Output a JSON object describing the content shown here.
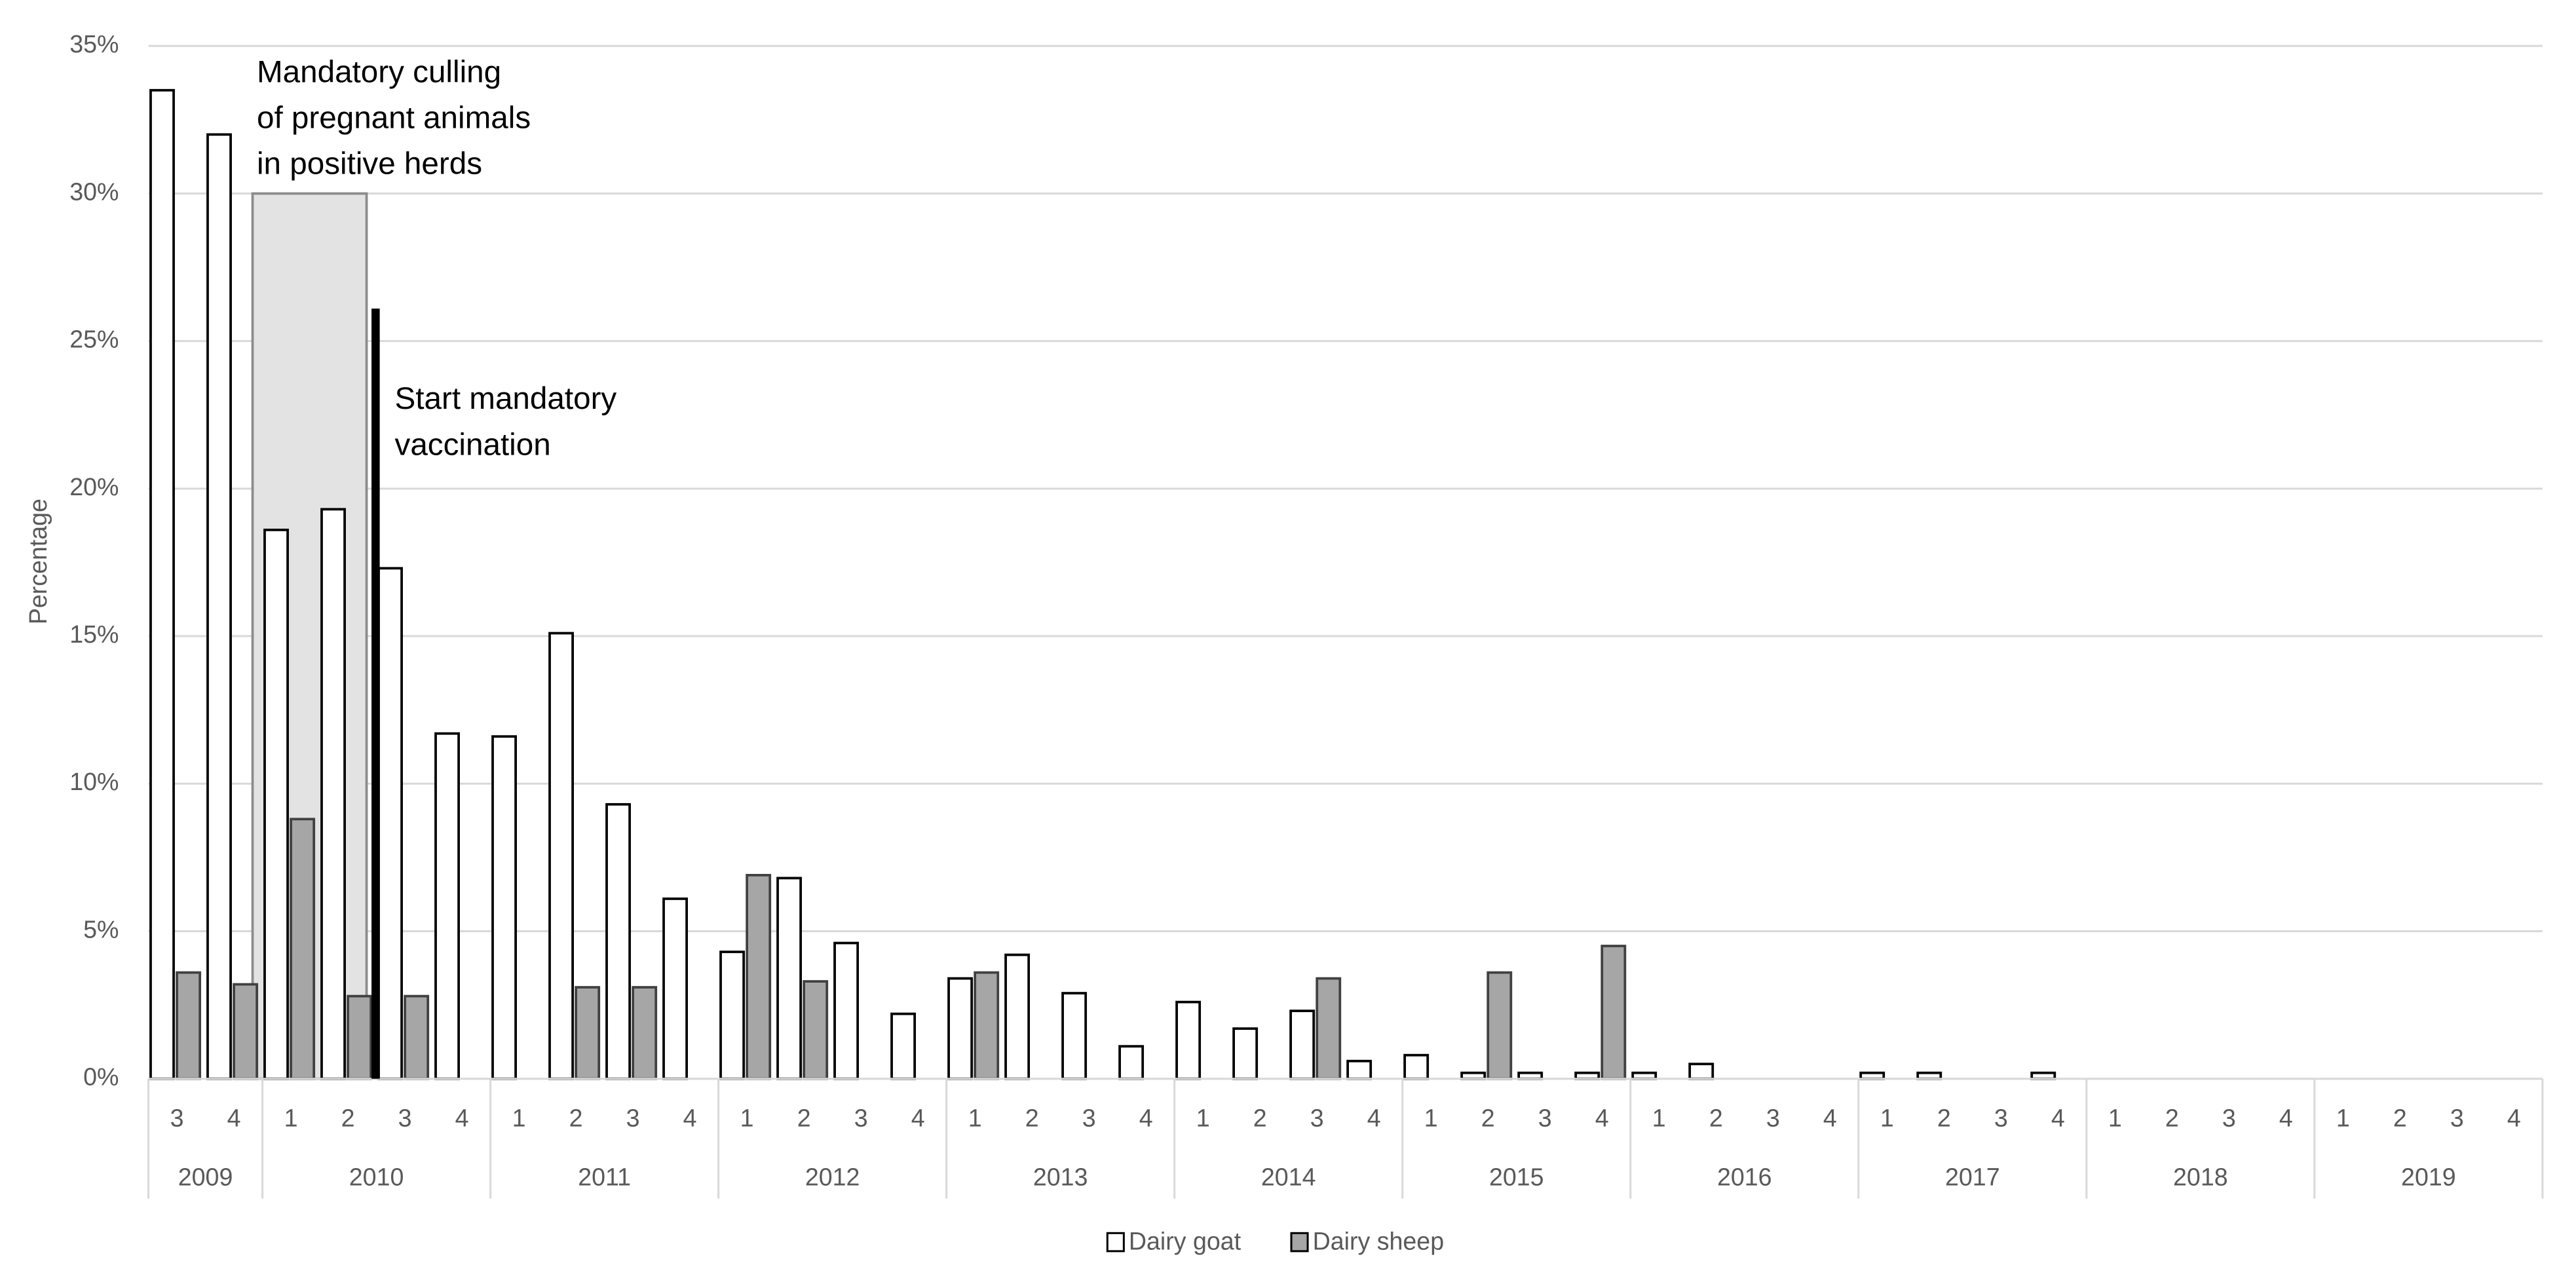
{
  "chart_data": {
    "type": "bar",
    "y_label": "Percentage",
    "ylim": [
      0,
      35
    ],
    "yticks": [
      {
        "value": 0,
        "label": "0%"
      },
      {
        "value": 5,
        "label": "5%"
      },
      {
        "value": 10,
        "label": "10%"
      },
      {
        "value": 15,
        "label": "15%"
      },
      {
        "value": 20,
        "label": "20%"
      },
      {
        "value": 25,
        "label": "25%"
      },
      {
        "value": 30,
        "label": "30%"
      },
      {
        "value": 35,
        "label": "35%"
      }
    ],
    "grid": true,
    "groups": [
      {
        "label": "2009",
        "categories": [
          "3",
          "4"
        ]
      },
      {
        "label": "2010",
        "categories": [
          "1",
          "2",
          "3",
          "4"
        ]
      },
      {
        "label": "2011",
        "categories": [
          "1",
          "2",
          "3",
          "4"
        ]
      },
      {
        "label": "2012",
        "categories": [
          "1",
          "2",
          "3",
          "4"
        ]
      },
      {
        "label": "2013",
        "categories": [
          "1",
          "2",
          "3",
          "4"
        ]
      },
      {
        "label": "2014",
        "categories": [
          "1",
          "2",
          "3",
          "4"
        ]
      },
      {
        "label": "2015",
        "categories": [
          "1",
          "2",
          "3",
          "4"
        ]
      },
      {
        "label": "2016",
        "categories": [
          "1",
          "2",
          "3",
          "4"
        ]
      },
      {
        "label": "2017",
        "categories": [
          "1",
          "2",
          "3",
          "4"
        ]
      },
      {
        "label": "2018",
        "categories": [
          "1",
          "2",
          "3",
          "4"
        ]
      },
      {
        "label": "2019",
        "categories": [
          "1",
          "2",
          "3",
          "4"
        ]
      }
    ],
    "series": [
      {
        "name": "Dairy goat",
        "color": "#ffffff",
        "values": [
          33.5,
          32.0,
          18.6,
          19.3,
          17.3,
          11.7,
          11.6,
          15.1,
          9.3,
          6.1,
          4.3,
          6.8,
          4.6,
          2.2,
          3.4,
          4.2,
          2.9,
          1.1,
          2.6,
          1.7,
          2.3,
          0.6,
          0.8,
          0.2,
          0.2,
          0.2,
          0.2,
          0.5,
          0,
          0,
          0.2,
          0.2,
          0,
          0.2,
          0,
          0,
          0,
          0,
          0,
          0,
          0,
          0
        ]
      },
      {
        "name": "Dairy sheep",
        "color": "#a6a6a6",
        "values": [
          3.6,
          3.2,
          8.8,
          2.8,
          2.8,
          0,
          0,
          3.1,
          3.1,
          0,
          6.9,
          3.3,
          0,
          0,
          3.6,
          0,
          0,
          0,
          0,
          0,
          3.4,
          0,
          0,
          3.6,
          0,
          4.5,
          0,
          0,
          0,
          0,
          0,
          0,
          0,
          0,
          0,
          0,
          0,
          0,
          0,
          0,
          0,
          0
        ]
      }
    ],
    "annotations": [
      {
        "text": [
          "Mandatory culling",
          "of pregnant animals",
          "in positive herds"
        ],
        "y": 30
      },
      {
        "text": [
          "Start mandatory",
          "vaccination"
        ],
        "y": 26.1
      }
    ],
    "legend": "bottom"
  }
}
